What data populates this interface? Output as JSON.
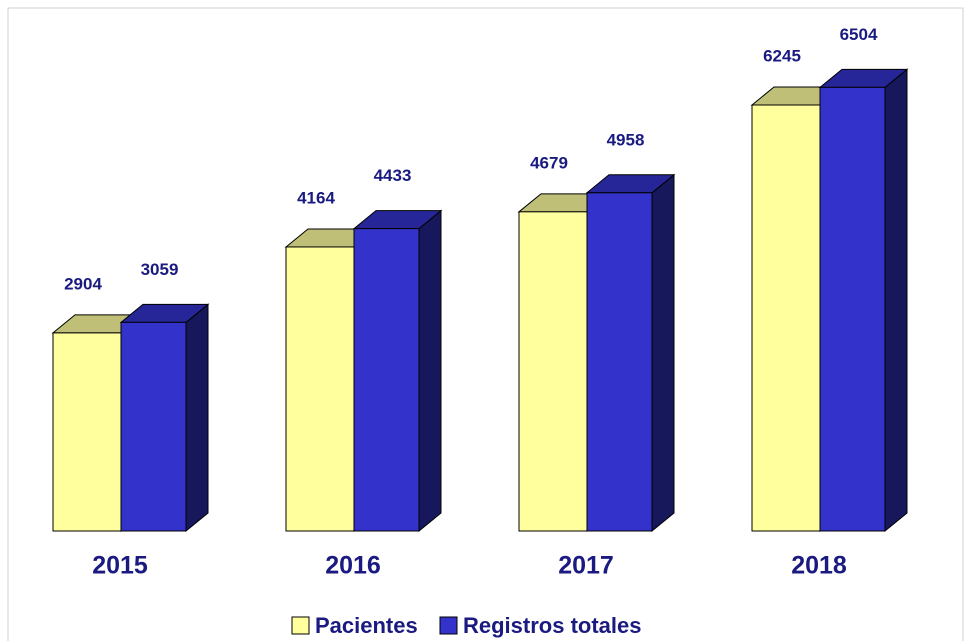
{
  "chart_data": {
    "type": "bar3d",
    "categories": [
      "2015",
      "2016",
      "2017",
      "2018"
    ],
    "series": [
      {
        "name": "Pacientes",
        "color": "#ffff9e",
        "values": [
          2904,
          4164,
          4679,
          6245
        ]
      },
      {
        "name": "Registros totales",
        "color": "#3333cc",
        "values": [
          3059,
          4433,
          4958,
          6504
        ]
      }
    ]
  }
}
